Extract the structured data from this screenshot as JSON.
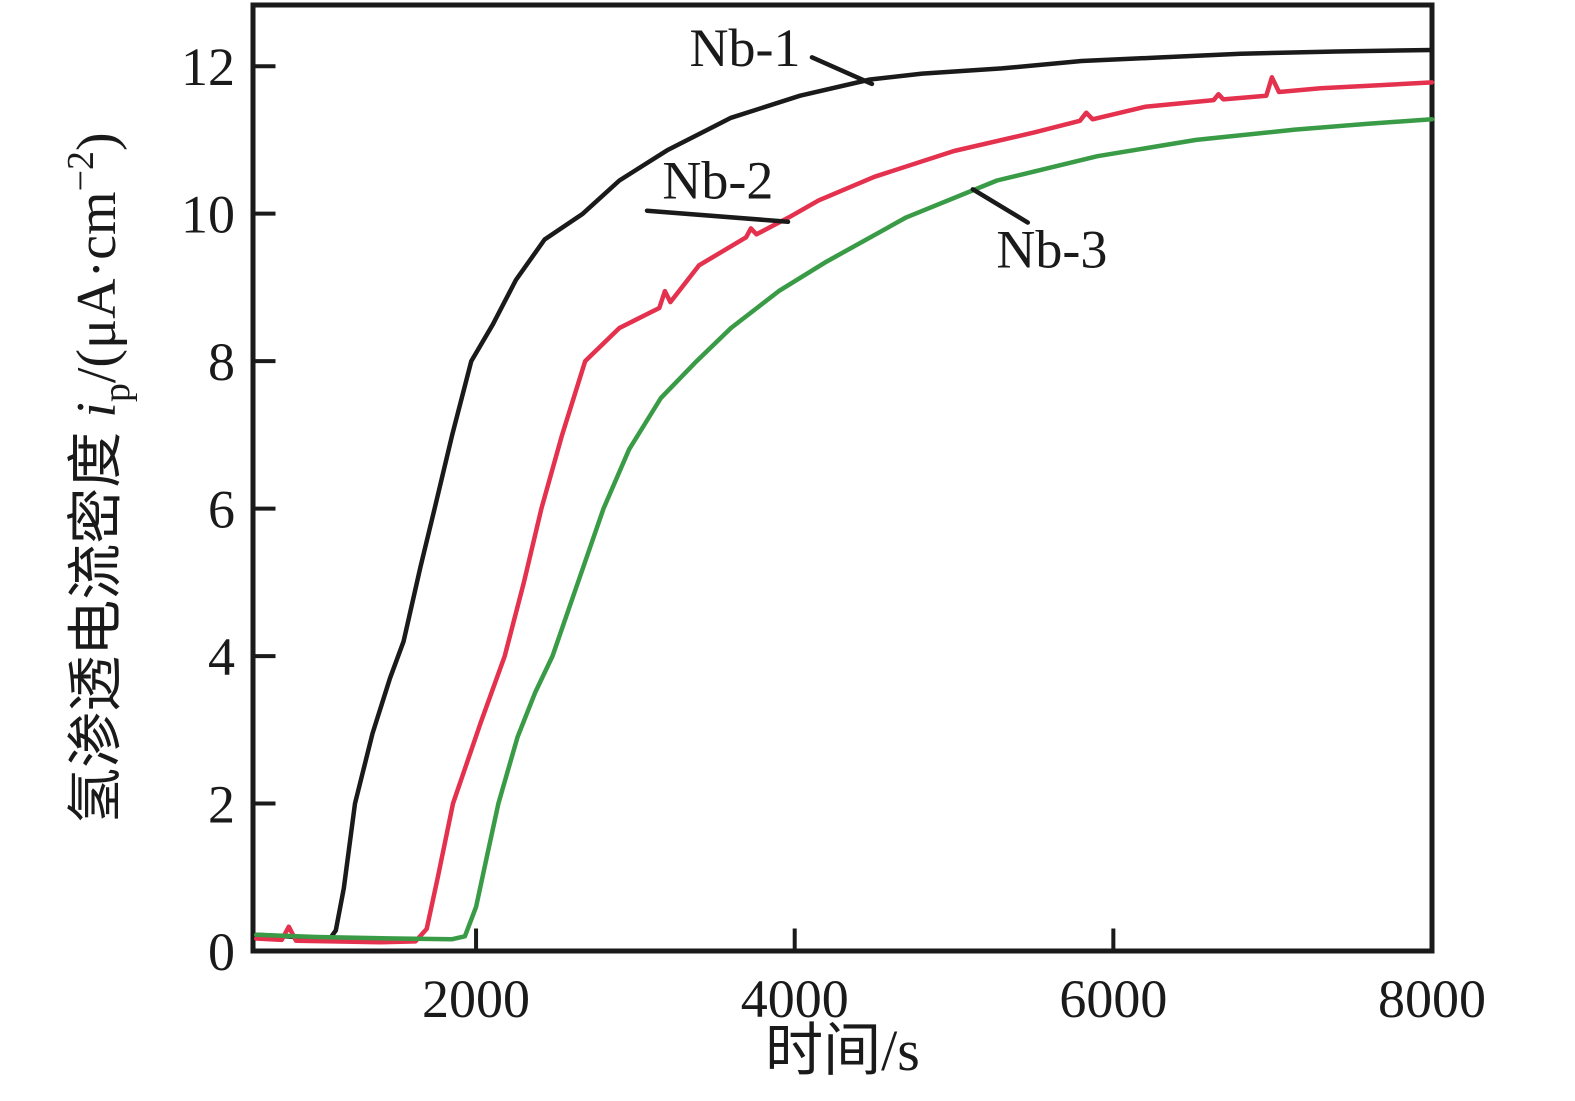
{
  "figure": {
    "background": "#ffffff",
    "axis_color": "#1a1a1a"
  },
  "chart_data": {
    "type": "line",
    "title": "",
    "xlabel": "时间/s",
    "ylabel": {
      "prefix_cn": "氢渗透电流密度 ",
      "symbol": "i",
      "symbol_sub": "p",
      "unit_open": "/(μA·cm",
      "unit_sup": "−2",
      "unit_close": ")"
    },
    "xlim": [
      600,
      8000
    ],
    "ylim": [
      0,
      12.83
    ],
    "x_ticks": [
      2000,
      4000,
      6000,
      8000
    ],
    "y_ticks": [
      0,
      2,
      4,
      6,
      8,
      10,
      12
    ],
    "grid": false,
    "legend_position": "none",
    "series": [
      {
        "name": "Nb-1",
        "color": "#1a1a1a",
        "points": [
          [
            620,
            0.22
          ],
          [
            800,
            0.2
          ],
          [
            1000,
            0.17
          ],
          [
            1080,
            0.16
          ],
          [
            1120,
            0.28
          ],
          [
            1170,
            0.85
          ],
          [
            1240,
            2.0
          ],
          [
            1350,
            2.95
          ],
          [
            1460,
            3.7
          ],
          [
            1545,
            4.2
          ],
          [
            1650,
            5.2
          ],
          [
            1740,
            6.0
          ],
          [
            1850,
            7.0
          ],
          [
            1970,
            8.0
          ],
          [
            2106,
            8.5
          ],
          [
            2250,
            9.1
          ],
          [
            2430,
            9.65
          ],
          [
            2670,
            10.0
          ],
          [
            2900,
            10.45
          ],
          [
            3200,
            10.86
          ],
          [
            3600,
            11.3
          ],
          [
            4034,
            11.6
          ],
          [
            4473,
            11.82
          ],
          [
            4800,
            11.9
          ],
          [
            5300,
            11.97
          ],
          [
            5800,
            12.07
          ],
          [
            6300,
            12.12
          ],
          [
            6800,
            12.17
          ],
          [
            7400,
            12.2
          ],
          [
            8000,
            12.22
          ]
        ]
      },
      {
        "name": "Nb-2",
        "color": "#e4314e",
        "points": [
          [
            620,
            0.17
          ],
          [
            780,
            0.15
          ],
          [
            825,
            0.33
          ],
          [
            870,
            0.14
          ],
          [
            1100,
            0.13
          ],
          [
            1400,
            0.12
          ],
          [
            1620,
            0.13
          ],
          [
            1690,
            0.3
          ],
          [
            1760,
            1.0
          ],
          [
            1855,
            2.0
          ],
          [
            2030,
            3.1
          ],
          [
            2180,
            4.0
          ],
          [
            2300,
            5.0
          ],
          [
            2410,
            6.0
          ],
          [
            2540,
            7.0
          ],
          [
            2685,
            8.0
          ],
          [
            2900,
            8.45
          ],
          [
            3150,
            8.72
          ],
          [
            3185,
            8.95
          ],
          [
            3220,
            8.8
          ],
          [
            3400,
            9.3
          ],
          [
            3695,
            9.68
          ],
          [
            3725,
            9.8
          ],
          [
            3760,
            9.72
          ],
          [
            3963,
            9.95
          ],
          [
            4150,
            10.18
          ],
          [
            4500,
            10.5
          ],
          [
            5000,
            10.85
          ],
          [
            5500,
            11.1
          ],
          [
            5790,
            11.26
          ],
          [
            5830,
            11.37
          ],
          [
            5870,
            11.28
          ],
          [
            6200,
            11.45
          ],
          [
            6630,
            11.54
          ],
          [
            6660,
            11.62
          ],
          [
            6690,
            11.55
          ],
          [
            6960,
            11.6
          ],
          [
            6995,
            11.85
          ],
          [
            7040,
            11.65
          ],
          [
            7300,
            11.7
          ],
          [
            8000,
            11.78
          ]
        ]
      },
      {
        "name": "Nb-3",
        "color": "#3a9b47",
        "points": [
          [
            620,
            0.22
          ],
          [
            1000,
            0.19
          ],
          [
            1500,
            0.17
          ],
          [
            1850,
            0.16
          ],
          [
            1930,
            0.2
          ],
          [
            2000,
            0.6
          ],
          [
            2070,
            1.3
          ],
          [
            2140,
            2.0
          ],
          [
            2260,
            2.9
          ],
          [
            2370,
            3.5
          ],
          [
            2480,
            4.0
          ],
          [
            2640,
            5.0
          ],
          [
            2800,
            6.0
          ],
          [
            2960,
            6.8
          ],
          [
            3160,
            7.5
          ],
          [
            3385,
            8.0
          ],
          [
            3600,
            8.45
          ],
          [
            3900,
            8.95
          ],
          [
            4200,
            9.35
          ],
          [
            4700,
            9.95
          ],
          [
            5270,
            10.45
          ],
          [
            5900,
            10.78
          ],
          [
            6520,
            11.0
          ],
          [
            7140,
            11.14
          ],
          [
            7600,
            11.22
          ],
          [
            8000,
            11.28
          ]
        ]
      }
    ],
    "annotations": [
      {
        "label": "Nb-1",
        "label_t": 3688,
        "label_v": 12.26,
        "line": [
          [
            4108,
            12.12
          ],
          [
            4485,
            11.76
          ]
        ]
      },
      {
        "label": "Nb-2",
        "label_t": 3518,
        "label_v": 10.46,
        "line": [
          [
            3073,
            10.04
          ],
          [
            3958,
            9.89
          ]
        ]
      },
      {
        "label": "Nb-3",
        "label_t": 5614,
        "label_v": 9.53,
        "line": [
          [
            5118,
            10.33
          ],
          [
            5463,
            9.88
          ]
        ]
      }
    ]
  }
}
